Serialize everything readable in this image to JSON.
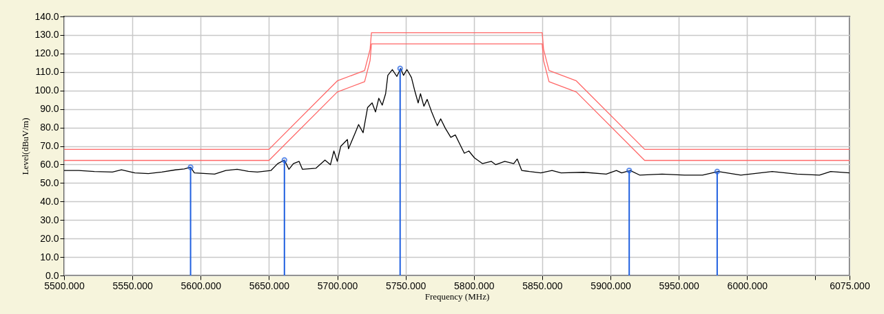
{
  "chart_data": {
    "type": "line",
    "xlabel": "Frequency (MHz)",
    "ylabel": "Level(dBuV/m)",
    "xlim": [
      5500,
      6075
    ],
    "ylim": [
      0,
      140
    ],
    "xticks": [
      {
        "value": 5500,
        "label": "5500.000"
      },
      {
        "value": 5550,
        "label": "5550.000"
      },
      {
        "value": 5600,
        "label": "5600.000"
      },
      {
        "value": 5650,
        "label": "5650.000"
      },
      {
        "value": 5700,
        "label": "5700.000"
      },
      {
        "value": 5750,
        "label": "5750.000"
      },
      {
        "value": 5800,
        "label": "5800.000"
      },
      {
        "value": 5850,
        "label": "5850.000"
      },
      {
        "value": 5900,
        "label": "5900.000"
      },
      {
        "value": 5950,
        "label": "5950.000"
      },
      {
        "value": 6000,
        "label": "6000.000"
      },
      {
        "value": 6050,
        "label": null
      },
      {
        "value": 6075,
        "label": "6075.000"
      }
    ],
    "yticks": [
      {
        "value": 0,
        "label": "0.0"
      },
      {
        "value": 10,
        "label": "10.0"
      },
      {
        "value": 20,
        "label": "20.0"
      },
      {
        "value": 30,
        "label": "30.0"
      },
      {
        "value": 40,
        "label": "40.0"
      },
      {
        "value": 50,
        "label": "50.0"
      },
      {
        "value": 60,
        "label": "60.0"
      },
      {
        "value": 70,
        "label": "70.0"
      },
      {
        "value": 80,
        "label": "80.0"
      },
      {
        "value": 90,
        "label": "90.0"
      },
      {
        "value": 100,
        "label": "100.0"
      },
      {
        "value": 110,
        "label": "110.0"
      },
      {
        "value": 120,
        "label": "120.0"
      },
      {
        "value": 130,
        "label": "130.0"
      },
      {
        "value": 140,
        "label": "140.0"
      }
    ],
    "grid": true,
    "series": [
      {
        "color": "#ff6666",
        "x": [
          5500,
          5650,
          5700,
          5720,
          5724,
          5725,
          5850,
          5851,
          5855,
          5875,
          5925,
          6075
        ],
        "values": [
          68.2,
          68.2,
          105.2,
          110.8,
          122.2,
          131.2,
          131.2,
          122.2,
          110.8,
          105.2,
          68.2,
          68.2
        ]
      },
      {
        "color": "#ff6666",
        "x": [
          5500,
          5650,
          5700,
          5720,
          5724,
          5725,
          5850,
          5851,
          5855,
          5875,
          5925,
          6075
        ],
        "values": [
          62.2,
          62.2,
          99.2,
          104.8,
          116.2,
          125.2,
          125.2,
          116.2,
          104.8,
          99.2,
          62.2,
          62.2
        ]
      },
      {
        "color": "#000000",
        "x": [
          5500,
          5510.7,
          5522.2,
          5535.4,
          5542,
          5551.8,
          5561.7,
          5571.6,
          5581.4,
          5588,
          5592.6,
          5595.4,
          5602,
          5610.2,
          5618.4,
          5626.7,
          5634.9,
          5641.5,
          5651.5,
          5656.4,
          5661.3,
          5664.6,
          5667.9,
          5672,
          5674.5,
          5684.4,
          5691,
          5695,
          5697.5,
          5700,
          5702.5,
          5707.4,
          5708.2,
          5713.2,
          5715.6,
          5718.9,
          5722.2,
          5725.5,
          5728,
          5730.4,
          5732.9,
          5735.4,
          5737,
          5740.3,
          5743.6,
          5746.4,
          5748.5,
          5751,
          5754.3,
          5756.8,
          5759.2,
          5760.9,
          5763.4,
          5765.8,
          5769.1,
          5773.2,
          5775.7,
          5779,
          5783.1,
          5786.4,
          5789.7,
          5793,
          5796.3,
          5800.4,
          5806.2,
          5812.7,
          5816,
          5822.6,
          5829.2,
          5831.7,
          5835,
          5840.7,
          5849,
          5857.2,
          5863.8,
          5880.4,
          5896.9,
          5904.3,
          5908.2,
          5914.4,
          5921.3,
          5937.8,
          5954.2,
          5967.4,
          5978.9,
          5995.4,
          6018.4,
          6036.5,
          6053,
          6061.2,
          6075
        ],
        "values": [
          56.8,
          56.8,
          56.2,
          55.9,
          57.1,
          55.5,
          55.1,
          55.9,
          57.1,
          57.6,
          58.5,
          55.5,
          55.2,
          54.8,
          56.8,
          57.4,
          56.3,
          55.9,
          56.8,
          60.5,
          62.4,
          57.4,
          60.5,
          61.7,
          57.4,
          58.0,
          62.4,
          59.9,
          67.3,
          61.7,
          69.8,
          73.5,
          68.5,
          77.2,
          81.6,
          77.2,
          90.8,
          93.3,
          88.4,
          95.8,
          92.1,
          98.3,
          108.2,
          111.3,
          107.6,
          111.9,
          108.2,
          111.3,
          107.0,
          99.6,
          93.3,
          98.3,
          91.5,
          95.2,
          88.4,
          81.0,
          84.7,
          79.7,
          74.7,
          76.0,
          71.0,
          66.1,
          67.3,
          63.6,
          60.5,
          61.7,
          59.9,
          61.7,
          60.5,
          63.0,
          56.8,
          56.2,
          55.5,
          56.8,
          55.5,
          55.8,
          54.8,
          56.8,
          55.5,
          56.8,
          54.3,
          54.8,
          54.3,
          54.3,
          56.2,
          54.3,
          56.2,
          54.8,
          54.3,
          56.2,
          55.5
        ]
      },
      {
        "type": "lollipop",
        "color": "#1f5fe0",
        "x": [
          5592.6,
          5661.3,
          5746.0,
          5913.7,
          5978.1
        ],
        "values": [
          58.5,
          62.4,
          111.9,
          56.8,
          56.2
        ]
      }
    ]
  }
}
